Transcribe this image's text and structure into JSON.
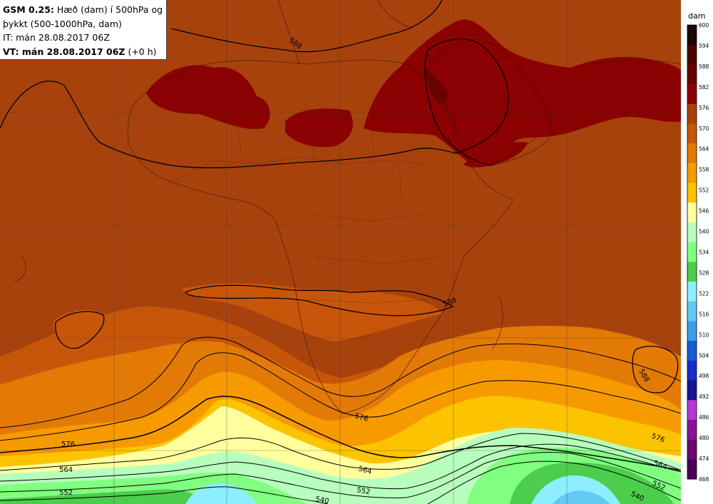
{
  "info": {
    "model": "GSM 0.25:",
    "line1_rest": " Hæð (dam) í 500hPa og",
    "line2": "þykkt (500-1000hPa, dam)",
    "line3": "IT: mán 28.08.2017 06Z",
    "line4_bold": "VT: mán 28.08.2017 06Z",
    "line4_rest": " (+0 h)"
  },
  "colorbar": {
    "unit": "dam",
    "labels": [
      "600",
      "594",
      "588",
      "582",
      "576",
      "570",
      "564",
      "558",
      "552",
      "546",
      "540",
      "534",
      "528",
      "522",
      "516",
      "510",
      "504",
      "498",
      "492",
      "486",
      "480",
      "474",
      "468"
    ],
    "colors": [
      "#1c0606",
      "#4a0404",
      "#6a0000",
      "#8b0000",
      "#a8420d",
      "#c8560a",
      "#e37a06",
      "#f79a00",
      "#fcc400",
      "#ffff9e",
      "#b8ffbe",
      "#80ff80",
      "#4ccd4c",
      "#8ceeff",
      "#63c8f2",
      "#3e9de8",
      "#1a5bd6",
      "#1a2ccc",
      "#151596",
      "#b438d6",
      "#8b1296",
      "#6a0870",
      "#4a0055"
    ]
  },
  "contours": {
    "labels": [
      "588",
      "588",
      "588",
      "576",
      "576",
      "576",
      "564",
      "564",
      "552",
      "552",
      "540",
      "540"
    ]
  }
}
